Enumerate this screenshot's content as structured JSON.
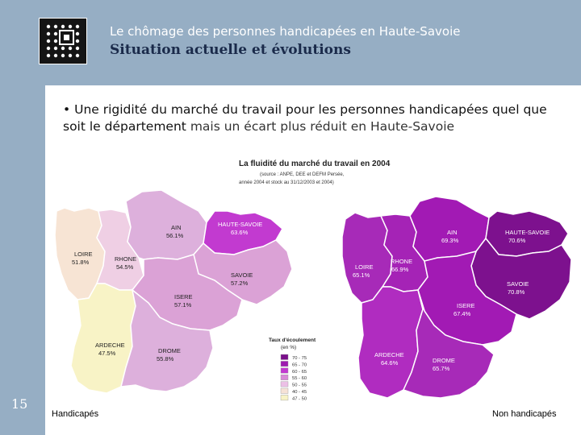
{
  "header": {
    "title": "Le chômage des personnes handicapées en Haute-Savoie",
    "subtitle": "Situation actuelle et évolutions"
  },
  "slide_number": "15",
  "bullet": {
    "marker": "•",
    "part1": "Une rigidité du marché du travail pour les personnes handicapées quel que soit le département",
    "part2": "mais un écart plus réduit en Haute-Savoie"
  },
  "figure": {
    "title": "La fluidité du marché du travail en 2004",
    "source_line1": "(source : ANPE, DEE et DEFM Persée,",
    "source_line2": "année 2004 et stock au 31/12/2003 et 2004)"
  },
  "legend": {
    "title_line1": "Taux d'écoulement",
    "title_line2": "(en %)",
    "items": [
      {
        "label": "70 - 75",
        "color": "#7a0f8a"
      },
      {
        "label": "65 - 70",
        "color": "#9e1ab0"
      },
      {
        "label": "60 - 65",
        "color": "#c23ad0"
      },
      {
        "label": "55 - 60",
        "color": "#d98ad8"
      },
      {
        "label": "50 - 55",
        "color": "#ecc0e6"
      },
      {
        "label": "40 - 45",
        "color": "#f6e2d6"
      },
      {
        "label": "47 - 50",
        "color": "#f8f3c6"
      }
    ]
  },
  "maps": {
    "left": {
      "caption": "Handicapés",
      "regions": [
        {
          "name": "AIN",
          "value": "56.1%",
          "color": "#ddb0dc"
        },
        {
          "name": "HAUTE-SAVOIE",
          "value": "63.6%",
          "color": "#c23ad0"
        },
        {
          "name": "LOIRE",
          "value": "51.8%",
          "color": "#f7e4d4"
        },
        {
          "name": "RHONE",
          "value": "54.5%",
          "color": "#efcfe4"
        },
        {
          "name": "SAVOIE",
          "value": "57.2%",
          "color": "#dba2d6"
        },
        {
          "name": "ISERE",
          "value": "57.1%",
          "color": "#dba2d6"
        },
        {
          "name": "ARDECHE",
          "value": "47.5%",
          "color": "#f8f3c6"
        },
        {
          "name": "DROME",
          "value": "55.8%",
          "color": "#ddb0dc"
        }
      ]
    },
    "right": {
      "caption": "Non handicapés",
      "regions": [
        {
          "name": "AIN",
          "value": "69.3%",
          "color": "#a21ab4"
        },
        {
          "name": "HAUTE-SAVOIE",
          "value": "70.6%",
          "color": "#7d118e"
        },
        {
          "name": "LOIRE",
          "value": "65.1%",
          "color": "#a72ab8"
        },
        {
          "name": "RHONE",
          "value": "66.9%",
          "color": "#a523b6"
        },
        {
          "name": "SAVOIE",
          "value": "70.8%",
          "color": "#7d118e"
        },
        {
          "name": "ISERE",
          "value": "67.4%",
          "color": "#a21ab4"
        },
        {
          "name": "ARDECHE",
          "value": "64.6%",
          "color": "#b02cc0"
        },
        {
          "name": "DROME",
          "value": "65.7%",
          "color": "#a72ab8"
        }
      ]
    }
  }
}
